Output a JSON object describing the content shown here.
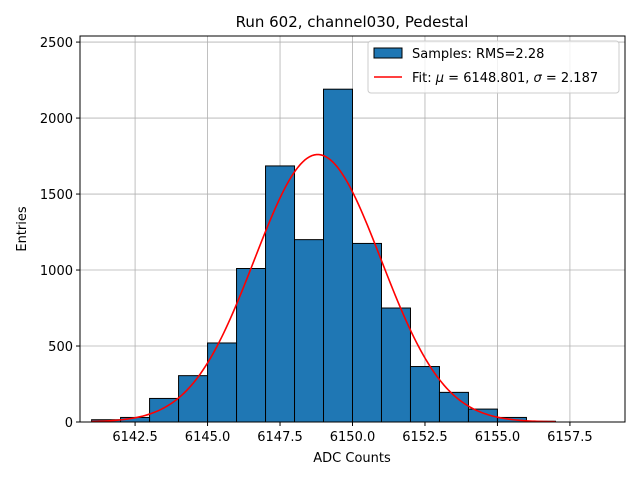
{
  "chart_data": {
    "type": "bar",
    "title": "Run 602, channel030, Pedestal",
    "xlabel": "ADC Counts",
    "ylabel": "Entries",
    "xlim": [
      6140.6,
      6159.4
    ],
    "ylim": [
      0,
      2540
    ],
    "bin_width": 1,
    "bin_edges_start": 6141,
    "values": [
      15,
      30,
      155,
      305,
      520,
      1010,
      1685,
      1200,
      2190,
      1175,
      750,
      365,
      195,
      85,
      30,
      5,
      0,
      0
    ],
    "x_ticks": [
      6142.5,
      6145.0,
      6147.5,
      6150.0,
      6152.5,
      6155.0,
      6157.5
    ],
    "x_tick_labels": [
      "6142.5",
      "6145.0",
      "6147.5",
      "6150.0",
      "6152.5",
      "6155.0",
      "6157.5"
    ],
    "y_ticks": [
      0,
      500,
      1000,
      1500,
      2000,
      2500
    ],
    "y_tick_labels": [
      "0",
      "500",
      "1000",
      "1500",
      "2000",
      "2500"
    ],
    "grid": true,
    "legend_position": "top-right",
    "series": [
      {
        "name": "Samples: RMS=2.28",
        "kind": "histogram",
        "color": "#1f77b4"
      },
      {
        "name": "Fit: μ = 6148.801, σ = 2.187",
        "kind": "fit",
        "color": "#ff0000",
        "mu": 6148.801,
        "sigma": 2.187,
        "amplitude": 1760,
        "x_range": [
          6141,
          6157
        ]
      }
    ]
  }
}
